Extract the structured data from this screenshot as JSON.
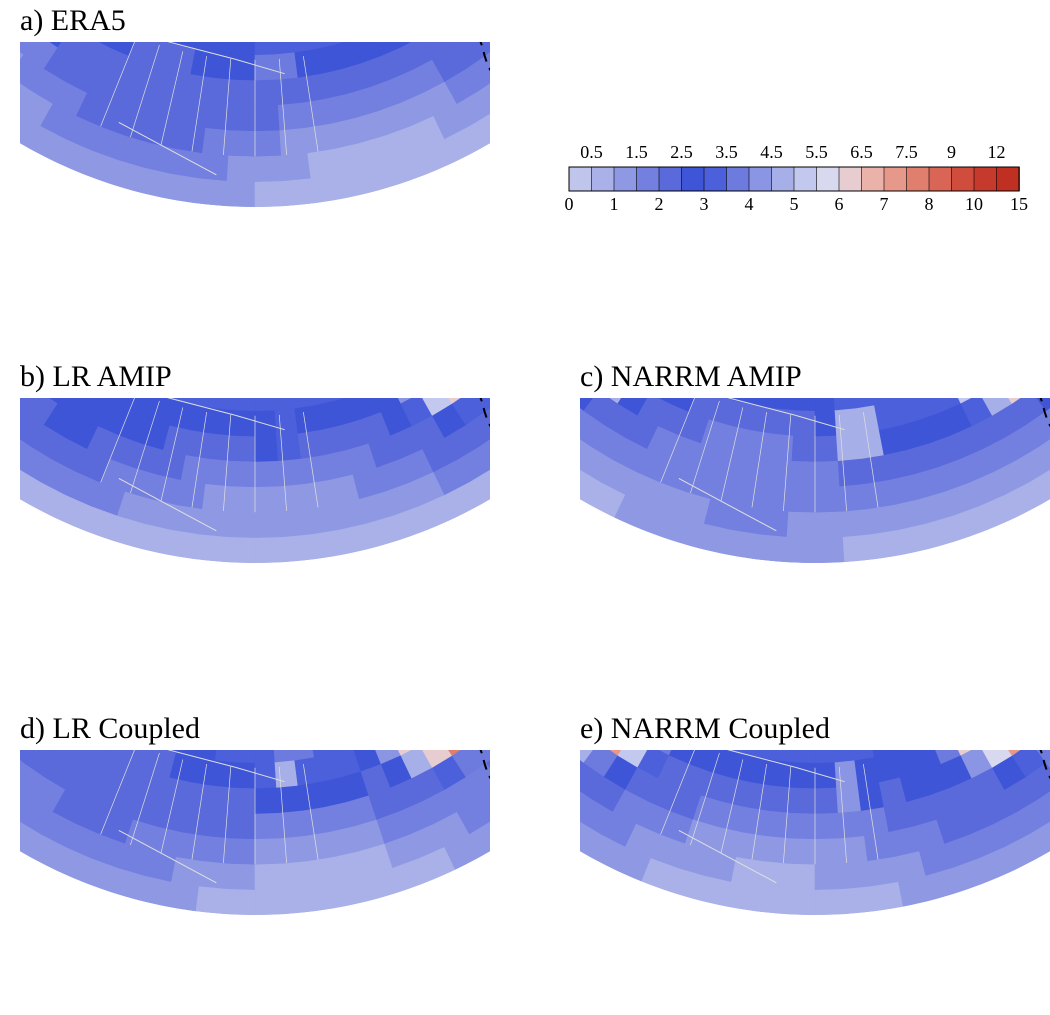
{
  "panels": [
    {
      "id": "a",
      "title": "a) ERA5",
      "hotspots": [
        {
          "lon": -150,
          "lat": 48,
          "r": 0.95,
          "v": 10
        },
        {
          "lon": -38,
          "lat": 54,
          "r": 1.15,
          "v": 10
        },
        {
          "lon": -85,
          "lat": 47,
          "r": 0.35,
          "v": 5.2
        }
      ]
    },
    {
      "id": "b",
      "title": "b) LR AMIP",
      "hotspots": [
        {
          "lon": -150,
          "lat": 47,
          "r": 0.95,
          "v": 9
        },
        {
          "lon": -38,
          "lat": 48,
          "r": 1.2,
          "v": 9
        },
        {
          "lon": -84,
          "lat": 45,
          "r": 0.4,
          "v": 6.2
        },
        {
          "lon": -73,
          "lat": 58,
          "r": 0.3,
          "v": 6.0
        }
      ]
    },
    {
      "id": "c",
      "title": "c) NARRM AMIP",
      "hotspots": [
        {
          "lon": -150,
          "lat": 48,
          "r": 1.15,
          "v": 11
        },
        {
          "lon": -38,
          "lat": 50,
          "r": 1.2,
          "v": 11
        },
        {
          "lon": -80,
          "lat": 45,
          "r": 0.55,
          "v": 7
        },
        {
          "lon": -75,
          "lat": 57,
          "r": 0.35,
          "v": 6.5
        }
      ]
    },
    {
      "id": "d",
      "title": "d) LR Coupled",
      "hotspots": [
        {
          "lon": -152,
          "lat": 46,
          "r": 0.85,
          "v": 9
        },
        {
          "lon": -38,
          "lat": 50,
          "r": 1.35,
          "v": 12
        },
        {
          "lon": -83,
          "lat": 46,
          "r": 0.4,
          "v": 6
        }
      ]
    },
    {
      "id": "e",
      "title": "e) NARRM Coupled",
      "hotspots": [
        {
          "lon": -148,
          "lat": 48,
          "r": 1.35,
          "v": 12
        },
        {
          "lon": -38,
          "lat": 50,
          "r": 1.3,
          "v": 12
        },
        {
          "lon": -82,
          "lat": 45,
          "r": 0.45,
          "v": 6.4
        },
        {
          "lon": -75,
          "lat": 58,
          "r": 0.35,
          "v": 6.5
        }
      ]
    }
  ],
  "colorbar": {
    "top_labels": [
      "0.5",
      "1.5",
      "2.5",
      "3.5",
      "4.5",
      "5.5",
      "6.5",
      "7.5",
      "9",
      "12"
    ],
    "bottom_labels": [
      "0",
      "1",
      "2",
      "3",
      "4",
      "5",
      "6",
      "7",
      "8",
      "10",
      "15"
    ],
    "levels": [
      0,
      0.5,
      1,
      1.5,
      2,
      2.5,
      3,
      3.5,
      4,
      4.5,
      5,
      5.5,
      6,
      6.5,
      7,
      7.5,
      8,
      9,
      10,
      12,
      15
    ],
    "colors": [
      "#c0c5ec",
      "#a9b1e8",
      "#8f99e3",
      "#7480df",
      "#5a6adb",
      "#3e55d8",
      "#4b60da",
      "#6d7ade",
      "#8a95e3",
      "#a7afe8",
      "#c3c8ee",
      "#d8d8ef",
      "#e7cdcf",
      "#eab2a9",
      "#e6998b",
      "#e07f6e",
      "#d86555",
      "#d04d3e",
      "#c63a2e",
      "#bf2f22"
    ],
    "background_color": "#b9bfe9"
  },
  "map": {
    "lon_min": -175,
    "lon_max": -5,
    "lat_min": 20,
    "lat_max": 85,
    "dashed_meridians": [
      -150,
      -40
    ],
    "overlay_color": "#e0e0e0"
  }
}
